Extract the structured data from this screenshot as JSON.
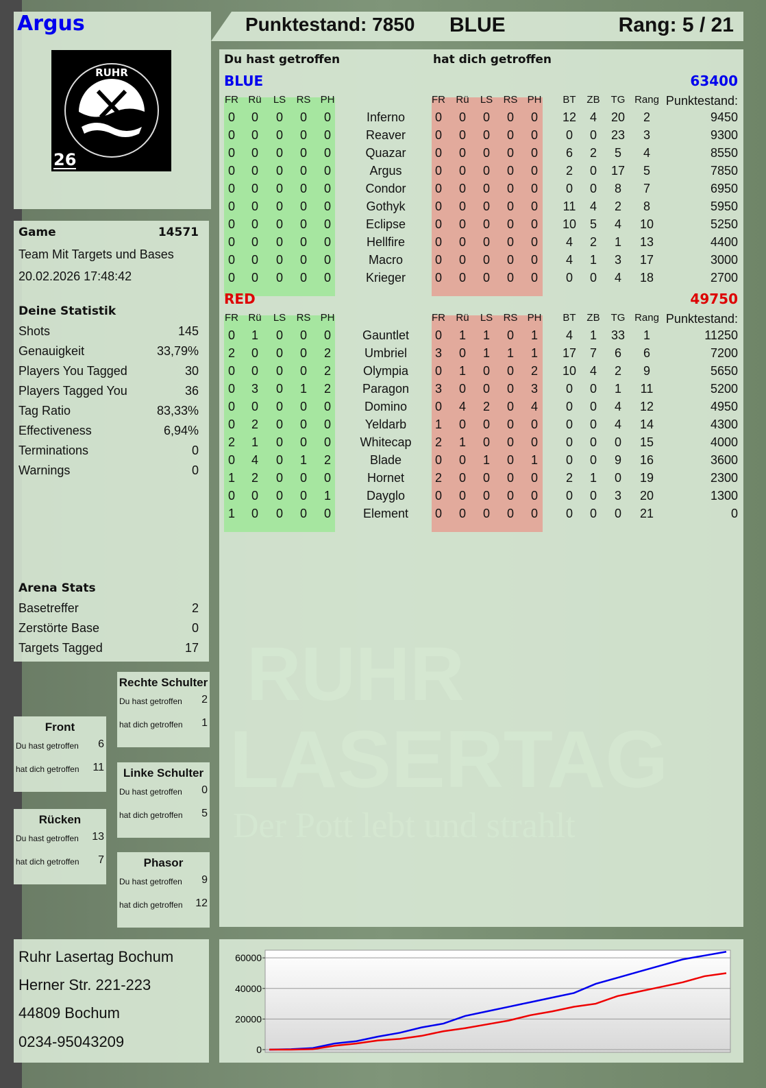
{
  "player": {
    "name": "Argus",
    "logo_text": "RUHR LASERTAG",
    "logo_number": "26"
  },
  "header": {
    "score_label": "Punktestand: 7850",
    "team": "BLUE",
    "rank_label": "Rang: 5 / 21"
  },
  "main": {
    "you_hit_label": "Du hast getroffen",
    "hit_you_label": "hat dich getroffen",
    "columns_hit": [
      "FR",
      "Rü",
      "LS",
      "RS",
      "PH"
    ],
    "columns_stats": [
      "BT",
      "ZB",
      "TG",
      "Rang",
      "Punktestand:"
    ],
    "teams": [
      {
        "name": "BLUE",
        "score": "63400",
        "color": "#0000ee",
        "rows": [
          [
            "Inferno",
            [
              0,
              0,
              0,
              0,
              0
            ],
            [
              0,
              0,
              0,
              0,
              0
            ],
            12,
            4,
            20,
            2,
            9450
          ],
          [
            "Reaver",
            [
              0,
              0,
              0,
              0,
              0
            ],
            [
              0,
              0,
              0,
              0,
              0
            ],
            0,
            0,
            23,
            3,
            9300
          ],
          [
            "Quazar",
            [
              0,
              0,
              0,
              0,
              0
            ],
            [
              0,
              0,
              0,
              0,
              0
            ],
            6,
            2,
            5,
            4,
            8550
          ],
          [
            "Argus",
            [
              0,
              0,
              0,
              0,
              0
            ],
            [
              0,
              0,
              0,
              0,
              0
            ],
            2,
            0,
            17,
            5,
            7850
          ],
          [
            "Condor",
            [
              0,
              0,
              0,
              0,
              0
            ],
            [
              0,
              0,
              0,
              0,
              0
            ],
            0,
            0,
            8,
            7,
            6950
          ],
          [
            "Gothyk",
            [
              0,
              0,
              0,
              0,
              0
            ],
            [
              0,
              0,
              0,
              0,
              0
            ],
            11,
            4,
            2,
            8,
            5950
          ],
          [
            "Eclipse",
            [
              0,
              0,
              0,
              0,
              0
            ],
            [
              0,
              0,
              0,
              0,
              0
            ],
            10,
            5,
            4,
            10,
            5250
          ],
          [
            "Hellfire",
            [
              0,
              0,
              0,
              0,
              0
            ],
            [
              0,
              0,
              0,
              0,
              0
            ],
            4,
            2,
            1,
            13,
            4400
          ],
          [
            "Macro",
            [
              0,
              0,
              0,
              0,
              0
            ],
            [
              0,
              0,
              0,
              0,
              0
            ],
            4,
            1,
            3,
            17,
            3000
          ],
          [
            "Krieger",
            [
              0,
              0,
              0,
              0,
              0
            ],
            [
              0,
              0,
              0,
              0,
              0
            ],
            0,
            0,
            4,
            18,
            2700
          ]
        ]
      },
      {
        "name": "RED",
        "score": "49750",
        "color": "#dd0000",
        "rows": [
          [
            "Gauntlet",
            [
              0,
              1,
              0,
              0,
              0
            ],
            [
              0,
              1,
              1,
              0,
              1
            ],
            4,
            1,
            33,
            1,
            11250
          ],
          [
            "Umbriel",
            [
              2,
              0,
              0,
              0,
              2
            ],
            [
              3,
              0,
              1,
              1,
              1
            ],
            17,
            7,
            6,
            6,
            7200
          ],
          [
            "Olympia",
            [
              0,
              0,
              0,
              0,
              2
            ],
            [
              0,
              1,
              0,
              0,
              2
            ],
            10,
            4,
            2,
            9,
            5650
          ],
          [
            "Paragon",
            [
              0,
              3,
              0,
              1,
              2
            ],
            [
              3,
              0,
              0,
              0,
              3
            ],
            0,
            0,
            1,
            11,
            5200
          ],
          [
            "Domino",
            [
              0,
              0,
              0,
              0,
              0
            ],
            [
              0,
              4,
              2,
              0,
              4
            ],
            0,
            0,
            4,
            12,
            4950
          ],
          [
            "Yeldarb",
            [
              0,
              2,
              0,
              0,
              0
            ],
            [
              1,
              0,
              0,
              0,
              0
            ],
            0,
            0,
            4,
            14,
            4300
          ],
          [
            "Whitecap",
            [
              2,
              1,
              0,
              0,
              0
            ],
            [
              2,
              1,
              0,
              0,
              0
            ],
            0,
            0,
            0,
            15,
            4000
          ],
          [
            "Blade",
            [
              0,
              4,
              0,
              1,
              2
            ],
            [
              0,
              0,
              1,
              0,
              1
            ],
            0,
            0,
            9,
            16,
            3600
          ],
          [
            "Hornet",
            [
              1,
              2,
              0,
              0,
              0
            ],
            [
              2,
              0,
              0,
              0,
              0
            ],
            2,
            1,
            0,
            19,
            2300
          ],
          [
            "Dayglo",
            [
              0,
              0,
              0,
              0,
              1
            ],
            [
              0,
              0,
              0,
              0,
              0
            ],
            0,
            0,
            3,
            20,
            1300
          ],
          [
            "Element",
            [
              1,
              0,
              0,
              0,
              0
            ],
            [
              0,
              0,
              0,
              0,
              0
            ],
            0,
            0,
            0,
            21,
            0
          ]
        ]
      }
    ]
  },
  "game": {
    "label": "Game",
    "id": "14571",
    "mode": "Team Mit Targets und Bases",
    "datetime": "20.02.2026 17:48:42"
  },
  "stats": {
    "title": "Deine Statistik",
    "items": [
      {
        "label": "Shots",
        "value": "145"
      },
      {
        "label": "Genauigkeit",
        "value": "33,79%"
      },
      {
        "label": "Players You Tagged",
        "value": "30"
      },
      {
        "label": "Players Tagged You",
        "value": "36"
      },
      {
        "label": "Tag Ratio",
        "value": "83,33%"
      },
      {
        "label": "Effectiveness",
        "value": "6,94%"
      },
      {
        "label": "Terminations",
        "value": "0"
      },
      {
        "label": "Warnings",
        "value": "0"
      }
    ]
  },
  "arena": {
    "title": "Arena Stats",
    "items": [
      {
        "label": "Basetreffer",
        "value": "2"
      },
      {
        "label": "Zerstörte Base",
        "value": "0"
      },
      {
        "label": "Targets Tagged",
        "value": "17"
      }
    ]
  },
  "zones": [
    {
      "title": "Rechte Schulter",
      "you_hit": "Du hast getroffen",
      "you_hit_value": "2",
      "hit_you": "hat dich getroffen",
      "hit_you_value": "1"
    },
    {
      "title": "Front",
      "you_hit": "Du hast getroffen",
      "you_hit_value": "6",
      "hit_you": "hat dich getroffen",
      "hit_you_value": "11"
    },
    {
      "title": "Linke Schulter",
      "you_hit": "Du hast getroffen",
      "you_hit_value": "0",
      "hit_you": "hat dich getroffen",
      "hit_you_value": "5"
    },
    {
      "title": "Rücken",
      "you_hit": "Du hast getroffen",
      "you_hit_value": "13",
      "hit_you": "hat dich getroffen",
      "hit_you_value": "7"
    },
    {
      "title": "Phasor",
      "you_hit": "Du hast getroffen",
      "you_hit_value": "9",
      "hit_you": "hat dich getroffen",
      "hit_you_value": "12"
    }
  ],
  "address": {
    "lines": [
      "Ruhr Lasertag Bochum",
      "Herner Str. 221-223",
      "44809 Bochum",
      "0234-95043209"
    ]
  },
  "watermark": {
    "line1": "RUHR",
    "line2": "LASERTAG",
    "slogan": "Der Pott lebt und strahlt"
  },
  "colors": {
    "green_cells": "#a6e6a0",
    "red_cells": "#e2aa9c",
    "blue": "#0000ee",
    "red": "#dd0000",
    "panel": "#dcecd8"
  },
  "chart_data": {
    "type": "line",
    "ylim": [
      0,
      65000
    ],
    "yticks": [
      0,
      20000,
      40000,
      60000
    ],
    "grid": true,
    "series": [
      {
        "color": "#0000ee",
        "values": [
          0,
          300,
          1000,
          4000,
          5500,
          8500,
          11000,
          14500,
          17000,
          22000,
          25000,
          28000,
          31000,
          34000,
          37000,
          43000,
          47000,
          51000,
          55000,
          59000,
          61500,
          64000
        ]
      },
      {
        "color": "#ee0000",
        "values": [
          0,
          0,
          300,
          2500,
          4000,
          6000,
          7000,
          9000,
          12000,
          14000,
          16500,
          19000,
          22500,
          25000,
          28000,
          30000,
          35000,
          38000,
          41000,
          44000,
          48000,
          50000
        ]
      }
    ]
  }
}
